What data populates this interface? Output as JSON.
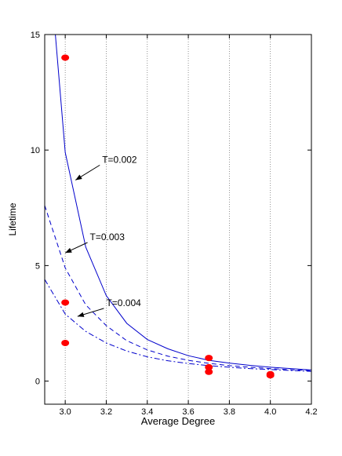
{
  "chart_data": {
    "type": "line",
    "title": "",
    "xlabel": "Average Degree",
    "ylabel": "Lifetime",
    "xlim": [
      2.9,
      4.2
    ],
    "ylim": [
      -1,
      15
    ],
    "grid": "vertical-dotted",
    "x_ticks": [
      3.0,
      3.2,
      3.4,
      3.6,
      3.8,
      4.0,
      4.2
    ],
    "x_tick_labels": [
      "3.0",
      "3.2",
      "3.4",
      "3.6",
      "3.8",
      "4.0",
      "4.2"
    ],
    "y_ticks": [
      0,
      5,
      10,
      15
    ],
    "y_tick_labels": [
      "0",
      "5",
      "10",
      "15"
    ],
    "series": [
      {
        "name": "T=0.002",
        "style": "solid",
        "color": "#0000cc",
        "x": [
          2.95,
          3.0,
          3.1,
          3.2,
          3.3,
          3.4,
          3.5,
          3.6,
          3.7,
          3.8,
          3.9,
          4.0,
          4.1,
          4.2
        ],
        "y": [
          15.2,
          9.9,
          5.8,
          3.7,
          2.5,
          1.8,
          1.4,
          1.1,
          0.9,
          0.78,
          0.68,
          0.6,
          0.54,
          0.48
        ]
      },
      {
        "name": "T=0.003",
        "style": "dashed",
        "color": "#0000cc",
        "x": [
          2.9,
          3.0,
          3.1,
          3.2,
          3.3,
          3.4,
          3.5,
          3.6,
          3.7,
          3.8,
          3.9,
          4.0,
          4.1,
          4.2
        ],
        "y": [
          7.6,
          4.9,
          3.3,
          2.4,
          1.75,
          1.35,
          1.08,
          0.9,
          0.77,
          0.67,
          0.6,
          0.54,
          0.49,
          0.45
        ]
      },
      {
        "name": "T=0.004",
        "style": "dashdot",
        "color": "#0000cc",
        "x": [
          2.9,
          3.0,
          3.1,
          3.2,
          3.3,
          3.4,
          3.5,
          3.6,
          3.7,
          3.8,
          3.9,
          4.0,
          4.1,
          4.2
        ],
        "y": [
          4.4,
          2.9,
          2.15,
          1.65,
          1.3,
          1.05,
          0.88,
          0.76,
          0.67,
          0.6,
          0.54,
          0.5,
          0.46,
          0.42
        ]
      }
    ],
    "points": {
      "color": "#ff0000",
      "x": [
        3.0,
        3.0,
        3.0,
        3.7,
        3.7,
        3.7,
        4.0,
        4.0
      ],
      "y": [
        14.0,
        3.4,
        1.65,
        1.0,
        0.6,
        0.4,
        0.3,
        0.25
      ]
    },
    "annotations": [
      {
        "text": "T=0.002",
        "x": 3.18,
        "y": 9.45,
        "target_x": 3.05,
        "target_y": 8.7
      },
      {
        "text": "T=0.003",
        "x": 3.12,
        "y": 6.1,
        "target_x": 3.0,
        "target_y": 5.55
      },
      {
        "text": "T=0.004",
        "x": 3.2,
        "y": 3.25,
        "target_x": 3.06,
        "target_y": 2.8
      }
    ]
  }
}
